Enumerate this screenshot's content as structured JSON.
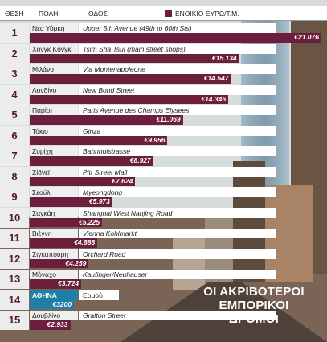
{
  "header": {
    "rank": "ΘΕΣΗ",
    "city": "ΠΟΛΗ",
    "street": "ΟΔΟΣ",
    "legend": "ΕΝΟΙΚΙΟ ΕΥΡΩ/Τ.Μ."
  },
  "caption": {
    "line1": "ΟΙ ΑΚΡΙΒΟΤΕΡΟΙ",
    "line2": "ΕΜΠΟΡΙΚΟΙ ΔΡΟΜΟΙ"
  },
  "colors": {
    "bar": "#6b1f3d",
    "highlight": "#1f7fa6"
  },
  "chart_data": {
    "type": "bar",
    "title": "ΟΙ ΑΚΡΙΒΟΤΕΡΟΙ ΕΜΠΟΡΙΚΟΙ ΔΡΟΜΟΙ",
    "series": [
      {
        "name": "ΕΝΟΙΚΙΟ ΕΥΡΩ/Τ.Μ.",
        "values": [
          21076,
          15134,
          14547,
          14346,
          11069,
          9956,
          8927,
          7624,
          5973,
          5225,
          4888,
          4259,
          3724,
          3200,
          2933
        ]
      }
    ],
    "rows": [
      {
        "rank": "1",
        "city": "Νέα Υόρκη",
        "street": "Upper 5th Avenue (49th to 60th Sts)",
        "value": 21076,
        "label": "€21.076"
      },
      {
        "rank": "2",
        "city": "Χονγκ Κονγκ",
        "street": "Tsim Sha Tsui (main street shops)",
        "value": 15134,
        "label": "€15.134"
      },
      {
        "rank": "3",
        "city": "Μιλάνο",
        "street": "Via Montenapoleone",
        "value": 14547,
        "label": "€14.547"
      },
      {
        "rank": "4",
        "city": "Λονδίνο",
        "street": "New Bond Street",
        "value": 14346,
        "label": "€14.346"
      },
      {
        "rank": "5",
        "city": "Παρίσι",
        "street": "Paris Avenue des Champs Elysees",
        "value": 11069,
        "label": "€11.069"
      },
      {
        "rank": "6",
        "city": "Τόκιο",
        "street": "Ginza",
        "value": 9956,
        "label": "€9.956"
      },
      {
        "rank": "7",
        "city": "Ζυρίχη",
        "street": "Bahnhofstrasse",
        "value": 8927,
        "label": "€8.927"
      },
      {
        "rank": "8",
        "city": "Σίδνεϊ",
        "street": "Pitt Street Mall",
        "value": 7624,
        "label": "€7.624"
      },
      {
        "rank": "9",
        "city": "Σεούλ",
        "street": "Myeongdong",
        "value": 5973,
        "label": "€5.973"
      },
      {
        "rank": "10",
        "city": "Σαγκάη",
        "street": "Shanghai West Nanjing Road",
        "value": 5225,
        "label": "€5.225"
      },
      {
        "rank": "11",
        "city": "Βιέννη",
        "street": "Vienna Kohlmarkt",
        "value": 4888,
        "label": "€4.888"
      },
      {
        "rank": "12",
        "city": "Σιγκαπούρη",
        "street": "Orchard Road",
        "value": 4259,
        "label": "€4.259"
      },
      {
        "rank": "13",
        "city": "Μόναχο",
        "street": "Kaufinger/Neuhauser",
        "value": 3724,
        "label": "€3.724"
      },
      {
        "rank": "14",
        "city": "ΑΘΗΝΑ",
        "street": "Ερμού",
        "value": 3200,
        "label": "€3200",
        "highlight": true
      },
      {
        "rank": "15",
        "city": "Δουβλίνο",
        "street": "Grafton Street",
        "value": 2933,
        "label": "€2.933"
      }
    ]
  }
}
